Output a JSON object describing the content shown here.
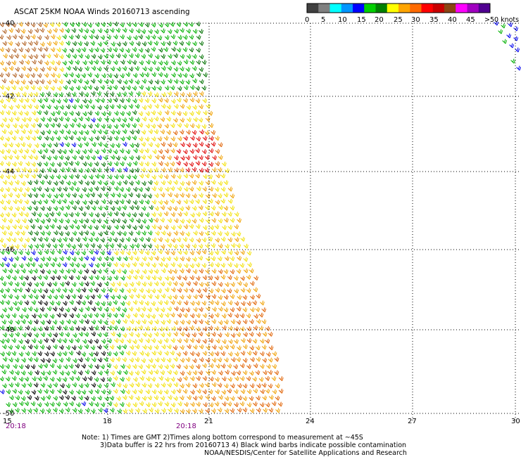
{
  "title": "ASCAT 25KM NOAA Winds 20160713 ascending",
  "legend": {
    "labels": [
      "0",
      "5",
      "10",
      "15",
      "20",
      "25",
      "30",
      "35",
      "40",
      "45",
      ">50 knots"
    ],
    "colors": [
      "#404040",
      "#808080",
      "#00ffff",
      "#0096ff",
      "#0000ff",
      "#00d000",
      "#008000",
      "#ffff00",
      "#ffa500",
      "#ff6a00",
      "#ff0000",
      "#c80000",
      "#8b4513",
      "#ff00ff",
      "#a000c0",
      "#500090"
    ]
  },
  "lat_labels": [
    "-40",
    "-42",
    "-44",
    "-46",
    "-48",
    "-50"
  ],
  "lon_labels": [
    "15",
    "18",
    "21",
    "24",
    "27",
    "30"
  ],
  "times": [
    "20:18",
    "20:18"
  ],
  "notes": [
    "Note: 1) Times are GMT 2)Times along bottom correspond to measurement at ~45S",
    "3)Data buffer is 22 hrs from 20160713 4) Black wind barbs indicate possible contamination",
    "NOAA/NESDIS/Center for Satellite Applications and Research"
  ],
  "wind_colors": {
    "blue": "#0000ee",
    "green": "#00b000",
    "darkgreen": "#007000",
    "yellow": "#f2e000",
    "orange": "#f0a000",
    "darkorange": "#e06000",
    "red": "#e00000",
    "brown": "#b06020",
    "black": "#000000"
  }
}
